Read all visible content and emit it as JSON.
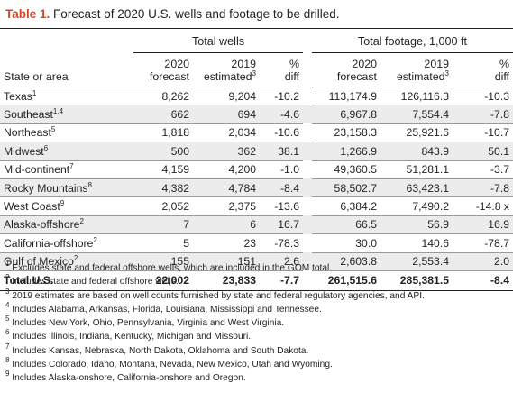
{
  "caption": {
    "label": "Table 1.",
    "text": " Forecast of 2020 U.S. wells and footage to be drilled."
  },
  "groups": {
    "wells": "Total wells",
    "footage": "Total footage, 1,000 ft"
  },
  "columns": {
    "state": "State or area",
    "w2020": [
      "2020",
      "forecast"
    ],
    "w2019": [
      "2019",
      "estimated"
    ],
    "w2019_sup": "3",
    "wdiff": [
      "%",
      "diff"
    ],
    "f2020": [
      "2020",
      "forecast"
    ],
    "f2019": [
      "2019",
      "estimated"
    ],
    "f2019_sup": "3",
    "fdiff": [
      "%",
      "diff"
    ]
  },
  "rows": [
    {
      "name": "Texas",
      "sup": "1",
      "w2020": "8,262",
      "w2019": "9,204",
      "wdiff": "-10.2",
      "f2020": "113,174.9",
      "f2019": "126,116.3",
      "fdiff": "-10.3"
    },
    {
      "name": "Southeast",
      "sup": "1,4",
      "w2020": "662",
      "w2019": "694",
      "wdiff": "-4.6",
      "f2020": "6,967.8",
      "f2019": "7,554.4",
      "fdiff": "-7.8"
    },
    {
      "name": "Northeast",
      "sup": "5",
      "w2020": "1,818",
      "w2019": "2,034",
      "wdiff": "-10.6",
      "f2020": "23,158.3",
      "f2019": "25,921.6",
      "fdiff": "-10.7"
    },
    {
      "name": "Midwest",
      "sup": "6",
      "w2020": "500",
      "w2019": "362",
      "wdiff": "38.1",
      "f2020": "1,266.9",
      "f2019": "843.9",
      "fdiff": "50.1"
    },
    {
      "name": "Mid-continent",
      "sup": "7",
      "w2020": "4,159",
      "w2019": "4,200",
      "wdiff": "-1.0",
      "f2020": "49,360.5",
      "f2019": "51,281.1",
      "fdiff": "-3.7"
    },
    {
      "name": "Rocky Mountains",
      "sup": "8",
      "w2020": "4,382",
      "w2019": "4,784",
      "wdiff": "-8.4",
      "f2020": "58,502.7",
      "f2019": "63,423.1",
      "fdiff": "-7.8"
    },
    {
      "name": "West Coast",
      "sup": "9",
      "w2020": "2,052",
      "w2019": "2,375",
      "wdiff": "-13.6",
      "f2020": "6,384.2",
      "f2019": "7,490.2",
      "fdiff": "-14.8 x"
    },
    {
      "name": "Alaska-offshore",
      "sup": "2",
      "w2020": "7",
      "w2019": "6",
      "wdiff": "16.7",
      "f2020": "66.5",
      "f2019": "56.9",
      "fdiff": "16.9"
    },
    {
      "name": "California-offshore",
      "sup": "2",
      "w2020": "5",
      "w2019": "23",
      "wdiff": "-78.3",
      "f2020": "30.0",
      "f2019": "140.6",
      "fdiff": "-78.7"
    },
    {
      "name": "Gulf of Mexico",
      "sup": "2",
      "w2020": "155",
      "w2019": "151",
      "wdiff": "2.6",
      "f2020": "2,603.8",
      "f2019": "2,553.4",
      "fdiff": "2.0"
    }
  ],
  "total": {
    "name": "Total U.S.",
    "w2020": "22,002",
    "w2019": "23,833",
    "wdiff": "-7.7",
    "f2020": "261,515.6",
    "f2019": "285,381.5",
    "fdiff": "-8.4"
  },
  "footnotes": [
    {
      "num": "1",
      "text": " Excludes state and federal offshore wells, which are included in the GOM total."
    },
    {
      "num": "2",
      "text": " Includes state and federal offshore wells."
    },
    {
      "num": "3",
      "text": " 2019 estimates are based on well counts furnished by state and federal regulatory agencies, and API."
    },
    {
      "num": "4",
      "text": " Includes Alabama, Arkansas, Florida, Louisiana, Mississippi and Tennessee."
    },
    {
      "num": "5",
      "text": " Includes New York, Ohio, Pennsylvania, Virginia and West Virginia."
    },
    {
      "num": "6",
      "text": " Includes Illinois, Indiana, Kentucky, Michigan and Missouri."
    },
    {
      "num": "7",
      "text": " Includes Kansas, Nebraska, North Dakota, Oklahoma and South Dakota."
    },
    {
      "num": "8",
      "text": " Includes Colorado, Idaho, Montana, Nevada, New Mexico, Utah and Wyoming."
    },
    {
      "num": "9",
      "text": " Includes Alaska-onshore, California-onshore and Oregon."
    }
  ],
  "colors": {
    "caption_label": "#d2492a",
    "row_shade": "#ececec",
    "text": "#231f20"
  }
}
